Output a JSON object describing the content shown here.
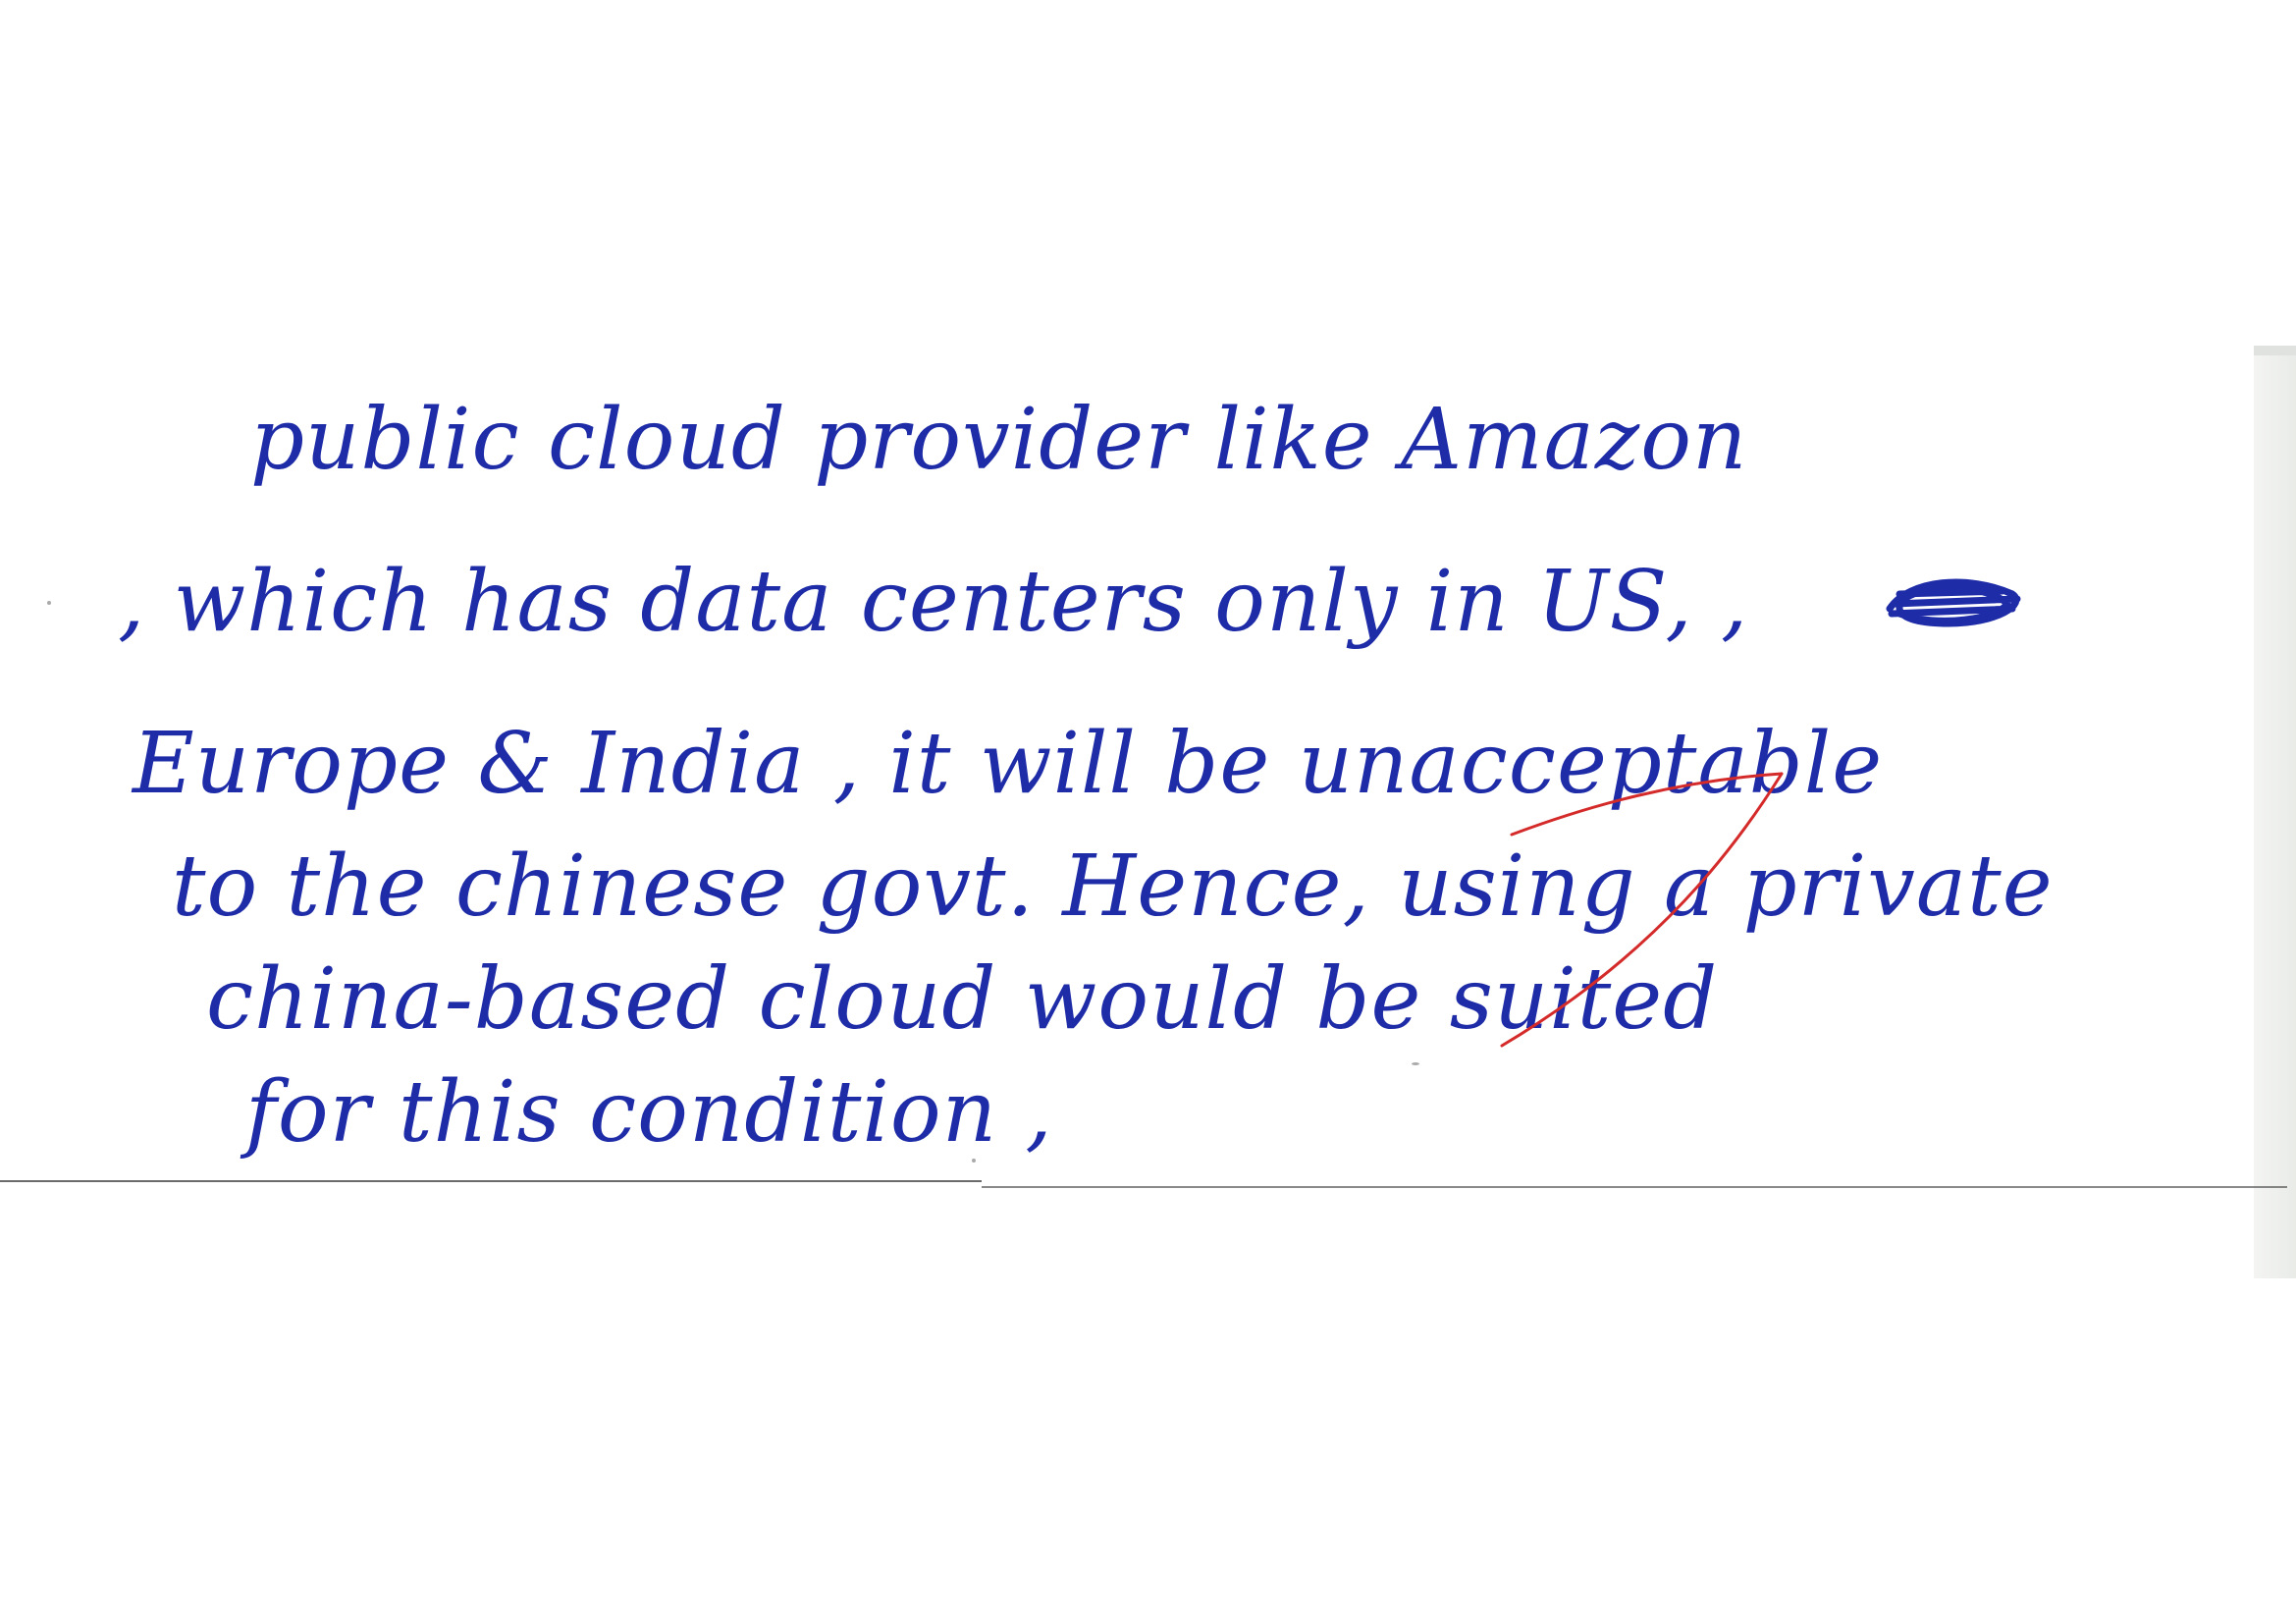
{
  "document": {
    "lines": [
      "public cloud provider like Amazon",
      ", which has data centers only in US,  ,",
      "Europe & India , it will be unacceptable",
      "to the chinese govt. Hence, using a private",
      "china-based cloud would be suited",
      "for this condition ,"
    ]
  },
  "colors": {
    "ink": "#1f2ca8",
    "correction": "#d42a2a",
    "rule": "#3a3a3a"
  }
}
